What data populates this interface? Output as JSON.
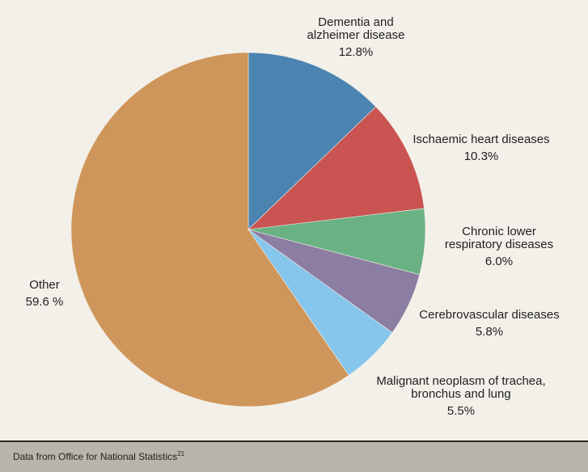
{
  "chart_data": {
    "type": "pie",
    "title": "",
    "legend": "none",
    "slices": [
      {
        "name": "Dementia and alzheimer disease",
        "value": 12.8,
        "label": "12.8%",
        "color": "#4c84b1"
      },
      {
        "name": "Ischaemic heart diseases",
        "value": 10.3,
        "label": "10.3%",
        "color": "#c95451"
      },
      {
        "name": "Chronic lower respiratory diseases",
        "value": 6.0,
        "label": "6.0%",
        "color": "#6ab283"
      },
      {
        "name": "Cerebrovascular diseases",
        "value": 5.8,
        "label": "5.8%",
        "color": "#8c7ea2"
      },
      {
        "name": "Malignant neoplasm of trachea, bronchus and lung",
        "value": 5.5,
        "label": "5.5%",
        "color": "#86c5ec"
      },
      {
        "name": "Other",
        "value": 59.6,
        "label": "59.6 %",
        "color": "#cf965b"
      }
    ],
    "label_lines": [
      [
        "Dementia and",
        "alzheimer disease"
      ],
      [
        "Ischaemic heart diseases"
      ],
      [
        "Chronic lower",
        "respiratory diseases"
      ],
      [
        "Cerebrovascular diseases"
      ],
      [
        "Malignant neoplasm of trachea,",
        "bronchus and lung"
      ],
      [
        "Other"
      ]
    ]
  },
  "footer": {
    "source_text": "Data from Office for National Statistics",
    "source_ref": "21"
  }
}
